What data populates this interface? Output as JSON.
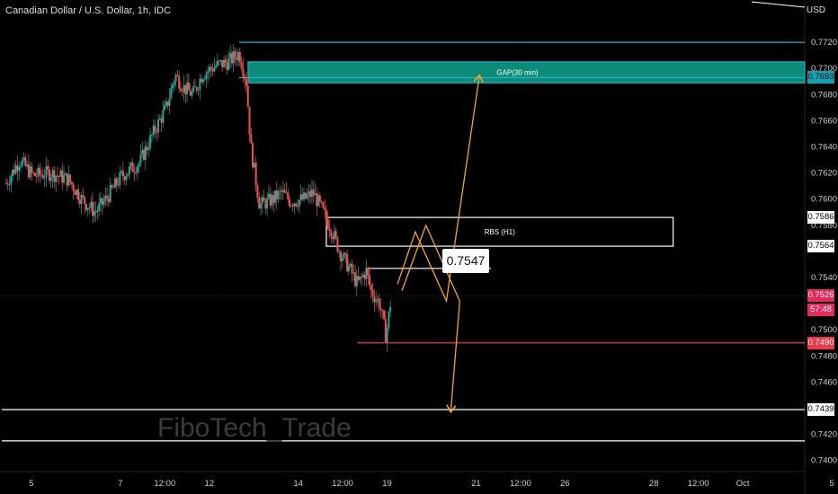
{
  "header": {
    "title": "Canadian Dollar / U.S. Dollar, 1h, IDC",
    "currency": "USD"
  },
  "watermark": "FiboTech_Trade",
  "annotations": {
    "gap_label": "GAP(30 min)",
    "rbs_label": "RBS (H1)",
    "level_callout": "0.7547"
  },
  "price_labels": [
    {
      "text": "0.7693",
      "price": 0.7693,
      "bg": "#0aa6b8",
      "color": "#000000"
    },
    {
      "text": "0.7586",
      "price": 0.7586,
      "bg": "#ffffff",
      "color": "#000000"
    },
    {
      "text": "0.7564",
      "price": 0.7564,
      "bg": "#ffffff",
      "color": "#000000"
    },
    {
      "text": "0.7526",
      "price": 0.7526,
      "bg": "#e8295c",
      "color": "#ffffff"
    },
    {
      "text": "57:48",
      "price": 0.7515,
      "bg": "#e8295c",
      "color": "#ffffff"
    },
    {
      "text": "0.7490",
      "price": 0.749,
      "bg": "#f23645",
      "color": "#ffffff"
    },
    {
      "text": "0.7439",
      "price": 0.7439,
      "bg": "#ffffff",
      "color": "#000000"
    }
  ],
  "chart_data": {
    "type": "candlestick",
    "title": "Canadian Dollar / U.S. Dollar, 1h, IDC",
    "ylim": [
      0.7395,
      0.774
    ],
    "y_ticks": [
      0.772,
      0.77,
      0.768,
      0.766,
      0.764,
      0.762,
      0.76,
      0.758,
      0.754,
      0.75,
      0.748,
      0.746,
      0.742,
      0.74
    ],
    "x_ticks": [
      {
        "label": "5",
        "pos": 0.0
      },
      {
        "label": "7",
        "pos": 1.0
      },
      {
        "label": "12:00",
        "pos": 1.5
      },
      {
        "label": "12",
        "pos": 2.0
      },
      {
        "label": "14",
        "pos": 3.0
      },
      {
        "label": "12:00",
        "pos": 3.5
      },
      {
        "label": "19",
        "pos": 4.0
      },
      {
        "label": "21",
        "pos": 5.0
      },
      {
        "label": "12:00",
        "pos": 5.5
      },
      {
        "label": "26",
        "pos": 6.0
      },
      {
        "label": "28",
        "pos": 7.0
      },
      {
        "label": "12:00",
        "pos": 7.5
      },
      {
        "label": "Oct",
        "pos": 8.0
      },
      {
        "label": "5",
        "pos": 9.0
      }
    ],
    "x_range": [
      -0.05,
      9.0
    ],
    "price_path": [
      [
        0.0,
        0.7612
      ],
      [
        0.15,
        0.763
      ],
      [
        0.3,
        0.7618
      ],
      [
        0.5,
        0.762
      ],
      [
        0.7,
        0.7615
      ],
      [
        0.85,
        0.76
      ],
      [
        1.0,
        0.759
      ],
      [
        1.1,
        0.7598
      ],
      [
        1.3,
        0.7618
      ],
      [
        1.5,
        0.7628
      ],
      [
        1.65,
        0.765
      ],
      [
        1.8,
        0.767
      ],
      [
        1.9,
        0.7695
      ],
      [
        2.0,
        0.7685
      ],
      [
        2.1,
        0.768
      ],
      [
        2.2,
        0.7695
      ],
      [
        2.35,
        0.7702
      ],
      [
        2.5,
        0.7705
      ],
      [
        2.62,
        0.7712
      ],
      [
        2.7,
        0.769
      ],
      [
        2.75,
        0.764
      ],
      [
        2.85,
        0.7595
      ],
      [
        3.0,
        0.76
      ],
      [
        3.1,
        0.7605
      ],
      [
        3.2,
        0.7598
      ],
      [
        3.35,
        0.76
      ],
      [
        3.45,
        0.7605
      ],
      [
        3.55,
        0.7592
      ],
      [
        3.65,
        0.7578
      ],
      [
        3.75,
        0.756
      ],
      [
        3.85,
        0.7548
      ],
      [
        3.95,
        0.7535
      ],
      [
        4.05,
        0.7545
      ],
      [
        4.1,
        0.753
      ],
      [
        4.2,
        0.752
      ],
      [
        4.27,
        0.7495
      ],
      [
        4.33,
        0.7525
      ]
    ],
    "levels": [
      {
        "name": "top",
        "price": 0.772,
        "color": "#1fb5c9",
        "from": 2.62
      },
      {
        "name": "gap-mid",
        "price": 0.7693,
        "color": "#1fb5c9",
        "from": 2.62
      },
      {
        "name": "support-0.7490",
        "price": 0.749,
        "color": "#f23645",
        "from": 3.95
      },
      {
        "name": "target-0.7439",
        "price": 0.7439,
        "color": "#ffffff",
        "from": -0.05
      },
      {
        "name": "low-line",
        "price": 0.7415,
        "color": "#ffffff",
        "from": -0.05
      },
      {
        "name": "level-0.7547",
        "price": 0.7547,
        "color": "#ffffff",
        "from": 4.05,
        "to": 5.45
      }
    ],
    "zones": [
      {
        "name": "gap-zone",
        "label": "GAP(30 min)",
        "top": 0.7705,
        "bottom": 0.7689,
        "from": 2.72,
        "fill": "#0c8c78",
        "stroke": "#1fb5c9"
      },
      {
        "name": "rbs-zone",
        "label": "RBS (H1)",
        "top": 0.7586,
        "bottom": 0.7564,
        "from": 3.6,
        "to": 7.5,
        "fill": "none",
        "stroke": "#ffffff"
      }
    ],
    "projections": [
      {
        "name": "up-path",
        "color": "#f5a623",
        "points": [
          [
            4.4,
            0.7535
          ],
          [
            4.6,
            0.7575
          ],
          [
            4.95,
            0.7522
          ],
          [
            5.32,
            0.7694
          ]
        ]
      },
      {
        "name": "down-path",
        "color": "#f5a623",
        "points": [
          [
            4.45,
            0.753
          ],
          [
            4.72,
            0.758
          ],
          [
            5.1,
            0.7522
          ],
          [
            5.0,
            0.7438
          ]
        ]
      }
    ]
  }
}
